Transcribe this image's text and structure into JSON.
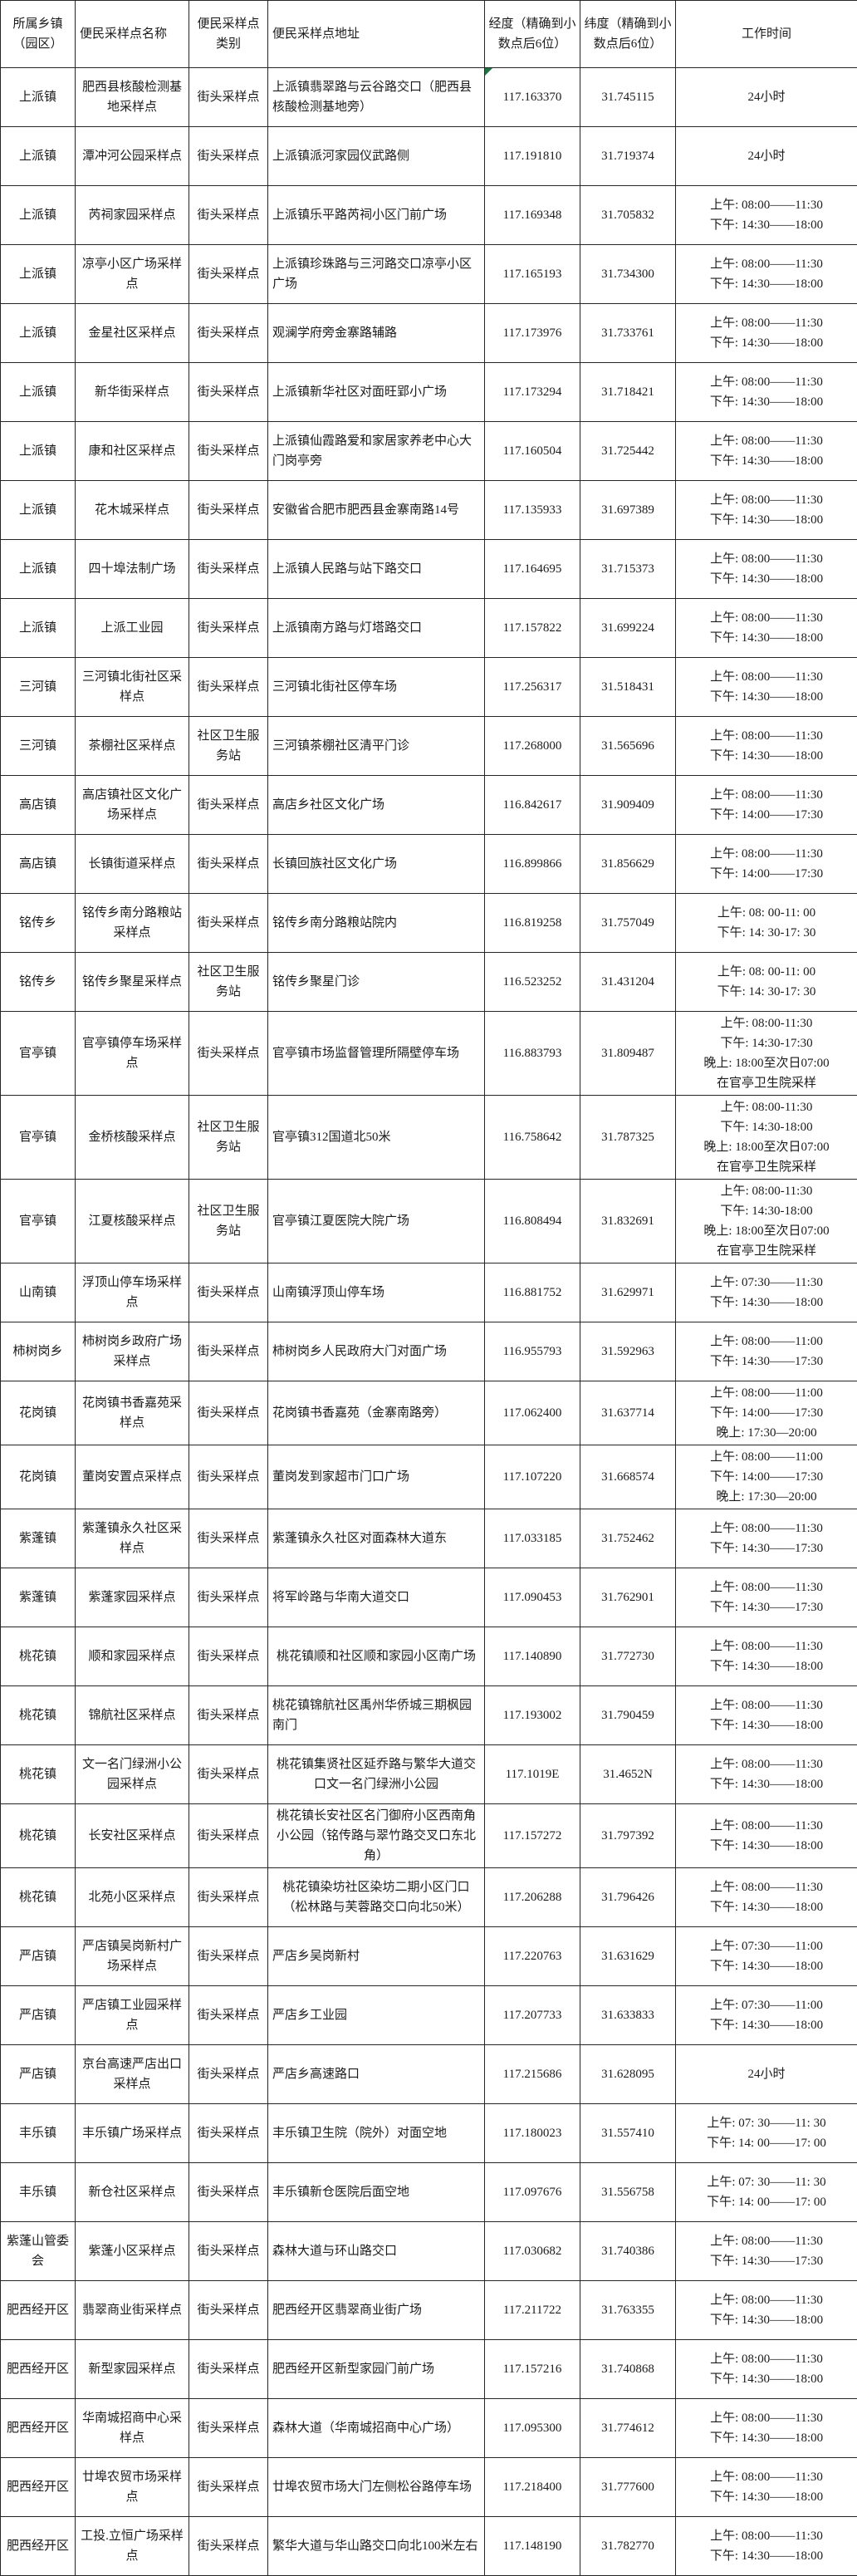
{
  "colors": {
    "grid": "#262626",
    "text": "#1b1b1b",
    "marker_green": "#217346"
  },
  "table": {
    "headers": [
      "所属乡镇（园区）",
      "便民采样点名称",
      "便民采样点类别",
      "便民采样点地址",
      "经度（精确到小数点后6位）",
      "纬度（精确到小数点后6位）",
      "工作时间"
    ],
    "rows": [
      {
        "town": "上派镇",
        "name": "肥西县核酸检测基地采样点",
        "category": "街头采样点",
        "address": "上派镇翡翠路与云谷路交口（肥西县核酸检测基地旁）",
        "lng": "117.163370",
        "lat": "31.745115",
        "hours": [
          "24小时"
        ],
        "lng_marker": true
      },
      {
        "town": "上派镇",
        "name": "潭冲河公园采样点",
        "category": "街头采样点",
        "address": "上派镇派河家园仪武路侧",
        "lng": "117.191810",
        "lat": "31.719374",
        "hours": [
          "24小时"
        ]
      },
      {
        "town": "上派镇",
        "name": "芮祠家园采样点",
        "category": "街头采样点",
        "address": "上派镇乐平路芮祠小区门前广场",
        "lng": "117.169348",
        "lat": "31.705832",
        "hours": [
          "上午: 08:00——11:30",
          "下午: 14:30——18:00"
        ]
      },
      {
        "town": "上派镇",
        "name": "凉亭小区广场采样点",
        "category": "街头采样点",
        "address": "上派镇珍珠路与三河路交口凉亭小区广场",
        "lng": "117.165193",
        "lat": "31.734300",
        "hours": [
          "上午: 08:00——11:30",
          "下午: 14:30——18:00"
        ]
      },
      {
        "town": "上派镇",
        "name": "金星社区采样点",
        "category": "街头采样点",
        "address": "观澜学府旁金寨路辅路",
        "lng": "117.173976",
        "lat": "31.733761",
        "hours": [
          "上午: 08:00——11:30",
          "下午: 14:30——18:00"
        ]
      },
      {
        "town": "上派镇",
        "name": "新华街采样点",
        "category": "街头采样点",
        "address": "上派镇新华社区对面旺郢小广场",
        "lng": "117.173294",
        "lat": "31.718421",
        "hours": [
          "上午: 08:00——11:30",
          "下午: 14:30——18:00"
        ]
      },
      {
        "town": "上派镇",
        "name": "康和社区采样点",
        "category": "街头采样点",
        "address": "上派镇仙霞路爱和家居家养老中心大门岗亭旁",
        "lng": "117.160504",
        "lat": "31.725442",
        "hours": [
          "上午: 08:00——11:30",
          "下午: 14:30——18:00"
        ]
      },
      {
        "town": "上派镇",
        "name": "花木城采样点",
        "category": "街头采样点",
        "address": "安徽省合肥市肥西县金寨南路14号",
        "lng": "117.135933",
        "lat": "31.697389",
        "hours": [
          "上午: 08:00——11:30",
          "下午: 14:30——18:00"
        ]
      },
      {
        "town": "上派镇",
        "name": "四十埠法制广场",
        "category": "街头采样点",
        "address": "上派镇人民路与站下路交口",
        "lng": "117.164695",
        "lat": "31.715373",
        "hours": [
          "上午: 08:00——11:30",
          "下午: 14:30——18:00"
        ]
      },
      {
        "town": "上派镇",
        "name": "上派工业园",
        "category": "街头采样点",
        "address": "上派镇南方路与灯塔路交口",
        "lng": "117.157822",
        "lat": "31.699224",
        "hours": [
          "上午: 08:00——11:30",
          "下午: 14:30——18:00"
        ]
      },
      {
        "town": "三河镇",
        "name": "三河镇北街社区采样点",
        "category": "街头采样点",
        "address": "三河镇北街社区停车场",
        "lng": "117.256317",
        "lat": "31.518431",
        "hours": [
          "上午: 08:00——11:30",
          "下午: 14:30——18:00"
        ]
      },
      {
        "town": "三河镇",
        "name": "茶棚社区采样点",
        "category": "社区卫生服务站",
        "address": "三河镇茶棚社区清平门诊",
        "lng": "117.268000",
        "lat": "31.565696",
        "hours": [
          "上午: 08:00——11:30",
          "下午: 14:30——18:00"
        ]
      },
      {
        "town": "高店镇",
        "name": "高店镇社区文化广场采样点",
        "category": "街头采样点",
        "address": "高店乡社区文化广场",
        "lng": "116.842617",
        "lat": "31.909409",
        "hours": [
          "上午: 08:00——11:30",
          "下午: 14:00——17:30"
        ]
      },
      {
        "town": "高店镇",
        "name": "长镇街道采样点",
        "category": "街头采样点",
        "address": "长镇回族社区文化广场",
        "lng": "116.899866",
        "lat": "31.856629",
        "hours": [
          "上午: 08:00——11:30",
          "下午: 14:00——17:30"
        ]
      },
      {
        "town": "铭传乡",
        "name": "铭传乡南分路粮站采样点",
        "category": "街头采样点",
        "address": "铭传乡南分路粮站院内",
        "lng": "116.819258",
        "lat": "31.757049",
        "hours": [
          "上午: 08: 00-11: 00",
          "下午: 14: 30-17: 30"
        ]
      },
      {
        "town": "铭传乡",
        "name": "铭传乡聚星采样点",
        "category": "社区卫生服务站",
        "address": "铭传乡聚星门诊",
        "lng": "116.523252",
        "lat": "31.431204",
        "hours": [
          "上午: 08: 00-11: 00",
          "下午: 14: 30-17: 30"
        ]
      },
      {
        "town": "官亭镇",
        "name": "官亭镇停车场采样点",
        "category": "街头采样点",
        "address": "官亭镇市场监督管理所隔壁停车场",
        "lng": "116.883793",
        "lat": "31.809487",
        "hours": [
          "上午: 08:00-11:30",
          "下午: 14:30-17:30",
          "晚上: 18:00至次日07:00",
          "在官亭卫生院采样"
        ]
      },
      {
        "town": "官亭镇",
        "name": "金桥核酸采样点",
        "category": "社区卫生服务站",
        "address": "官亭镇312国道北50米",
        "lng": "116.758642",
        "lat": "31.787325",
        "hours": [
          "上午: 08:00-11:30",
          "下午: 14:30-18:00",
          "晚上: 18:00至次日07:00",
          "在官亭卫生院采样"
        ]
      },
      {
        "town": "官亭镇",
        "name": "江夏核酸采样点",
        "category": "社区卫生服务站",
        "address": "官亭镇江夏医院大院广场",
        "lng": "116.808494",
        "lat": "31.832691",
        "hours": [
          "上午: 08:00-11:30",
          "下午: 14:30-18:00",
          "晚上: 18:00至次日07:00",
          "在官亭卫生院采样"
        ]
      },
      {
        "town": "山南镇",
        "name": "浮顶山停车场采样点",
        "category": "街头采样点",
        "address": "山南镇浮顶山停车场",
        "lng": "116.881752",
        "lat": "31.629971",
        "hours": [
          "上午: 07:30——11:30",
          "下午: 14:30——18:00"
        ]
      },
      {
        "town": "柿树岗乡",
        "name": "柿树岗乡政府广场采样点",
        "category": "街头采样点",
        "address": "柿树岗乡人民政府大门对面广场",
        "lng": "116.955793",
        "lat": "31.592963",
        "hours": [
          "上午: 08:00——11:00",
          "下午: 14:30——17:30"
        ]
      },
      {
        "town": "花岗镇",
        "name": "花岗镇书香嘉苑采样点",
        "category": "街头采样点",
        "address": "花岗镇书香嘉苑（金寨南路旁）",
        "lng": "117.062400",
        "lat": "31.637714",
        "hours": [
          "上午: 08:00——11:00",
          "下午: 14:00——17:30",
          "晚上: 17:30—20:00"
        ]
      },
      {
        "town": "花岗镇",
        "name": "董岗安置点采样点",
        "category": "街头采样点",
        "address": "董岗发到家超市门口广场",
        "lng": "117.107220",
        "lat": "31.668574",
        "hours": [
          "上午: 08:00——11:00",
          "下午: 14:00——17:30",
          "晚上: 17:30—20:00"
        ]
      },
      {
        "town": "紫蓬镇",
        "name": "紫蓬镇永久社区采样点",
        "category": "街头采样点",
        "address": "紫蓬镇永久社区对面森林大道东",
        "lng": "117.033185",
        "lat": "31.752462",
        "hours": [
          "上午: 08:00——11:30",
          "下午: 14:30——17:30"
        ]
      },
      {
        "town": "紫蓬镇",
        "name": "紫蓬家园采样点",
        "category": "街头采样点",
        "address": "将军岭路与华南大道交口",
        "lng": "117.090453",
        "lat": "31.762901",
        "hours": [
          "上午: 08:00——11:30",
          "下午: 14:30——17:30"
        ]
      },
      {
        "town": "桃花镇",
        "name": "顺和家园采样点",
        "category": "街头采样点",
        "address": "桃花镇顺和社区顺和家园小区南广场",
        "lng": "117.140890",
        "lat": "31.772730",
        "hours": [
          "上午: 08:00——11:30",
          "下午: 14:30——18:00"
        ],
        "addr_center": true
      },
      {
        "town": "桃花镇",
        "name": "锦航社区采样点",
        "category": "街头采样点",
        "address": "桃花镇锦航社区禹州华侨城三期枫园南门",
        "lng": "117.193002",
        "lat": "31.790459",
        "hours": [
          "上午: 08:00——11:30",
          "下午: 14:30——18:00"
        ]
      },
      {
        "town": "桃花镇",
        "name": "文一名门绿洲小公园采样点",
        "category": "街头采样点",
        "address": "桃花镇集贤社区延乔路与繁华大道交口文一名门绿洲小公园",
        "lng": "117.1019E",
        "lat": "31.4652N",
        "hours": [
          "上午: 08:00——11:30",
          "下午: 14:30——18:00"
        ],
        "addr_center": true
      },
      {
        "town": "桃花镇",
        "name": "长安社区采样点",
        "category": "街头采样点",
        "address": "桃花镇长安社区名门御府小区西南角小公园（铭传路与翠竹路交叉口东北角）",
        "lng": "117.157272",
        "lat": "31.797392",
        "hours": [
          "上午: 08:00——11:30",
          "下午: 14:30——18:00"
        ],
        "addr_center": true
      },
      {
        "town": "桃花镇",
        "name": "北苑小区采样点",
        "category": "街头采样点",
        "address": "桃花镇染坊社区染坊二期小区门口（松林路与芙蓉路交口向北50米）",
        "lng": "117.206288",
        "lat": "31.796426",
        "hours": [
          "上午: 08:00——11:30",
          "下午: 14:30——18:00"
        ],
        "addr_center": true
      },
      {
        "town": "严店镇",
        "name": "严店镇吴岗新村广场采样点",
        "category": "街头采样点",
        "address": "严店乡吴岗新村",
        "lng": "117.220763",
        "lat": "31.631629",
        "hours": [
          "上午: 07:30——11:00",
          "下午: 14:30——18:00"
        ]
      },
      {
        "town": "严店镇",
        "name": "严店镇工业园采样点",
        "category": "街头采样点",
        "address": "严店乡工业园",
        "lng": "117.207733",
        "lat": "31.633833",
        "hours": [
          "上午: 07:30——11:00",
          "下午: 14:30——18:00"
        ]
      },
      {
        "town": "严店镇",
        "name": "京台高速严店出口采样点",
        "category": "街头采样点",
        "address": "严店乡高速路口",
        "lng": "117.215686",
        "lat": "31.628095",
        "hours": [
          "24小时"
        ]
      },
      {
        "town": "丰乐镇",
        "name": "丰乐镇广场采样点",
        "category": "街头采样点",
        "address": "丰乐镇卫生院（院外）对面空地",
        "lng": "117.180023",
        "lat": "31.557410",
        "hours": [
          "上午: 07: 30——11: 30",
          "下午: 14: 00——17: 00"
        ]
      },
      {
        "town": "丰乐镇",
        "name": "新仓社区采样点",
        "category": "街头采样点",
        "address": "丰乐镇新仓医院后面空地",
        "lng": "117.097676",
        "lat": "31.556758",
        "hours": [
          "上午: 07: 30——11: 30",
          "下午: 14: 00——17: 00"
        ]
      },
      {
        "town": "紫蓬山管委会",
        "name": "紫蓬小区采样点",
        "category": "街头采样点",
        "address": "森林大道与环山路交口",
        "lng": "117.030682",
        "lat": "31.740386",
        "hours": [
          "上午: 08:00——11:30",
          "下午: 14:30——17:30"
        ]
      },
      {
        "town": "肥西经开区",
        "name": "翡翠商业街采样点",
        "category": "街头采样点",
        "address": "肥西经开区翡翠商业街广场",
        "lng": "117.211722",
        "lat": "31.763355",
        "hours": [
          "上午: 08:00——11:30",
          "下午: 14:30——18:00"
        ]
      },
      {
        "town": "肥西经开区",
        "name": "新型家园采样点",
        "category": "街头采样点",
        "address": "肥西经开区新型家园门前广场",
        "lng": "117.157216",
        "lat": "31.740868",
        "hours": [
          "上午: 08:00——11:30",
          "下午: 14:30——18:00"
        ]
      },
      {
        "town": "肥西经开区",
        "name": "华南城招商中心采样点",
        "category": "街头采样点",
        "address": "森林大道（华南城招商中心广场）",
        "lng": "117.095300",
        "lat": "31.774612",
        "hours": [
          "上午: 08:00——11:30",
          "下午: 14:30——18:00"
        ]
      },
      {
        "town": "肥西经开区",
        "name": "廿埠农贸市场采样点",
        "category": "街头采样点",
        "address": "廿埠农贸市场大门左侧松谷路停车场",
        "lng": "117.218400",
        "lat": "31.777600",
        "hours": [
          "上午: 08:00——11:30",
          "下午: 14:30——18:00"
        ]
      },
      {
        "town": "肥西经开区",
        "name": "工投.立恒广场采样点",
        "category": "街头采样点",
        "address": "繁华大道与华山路交口向北100米左右",
        "lng": "117.148190",
        "lat": "31.782770",
        "hours": [
          "上午: 08:00——11:30",
          "下午: 14:30——18:00"
        ]
      }
    ]
  }
}
